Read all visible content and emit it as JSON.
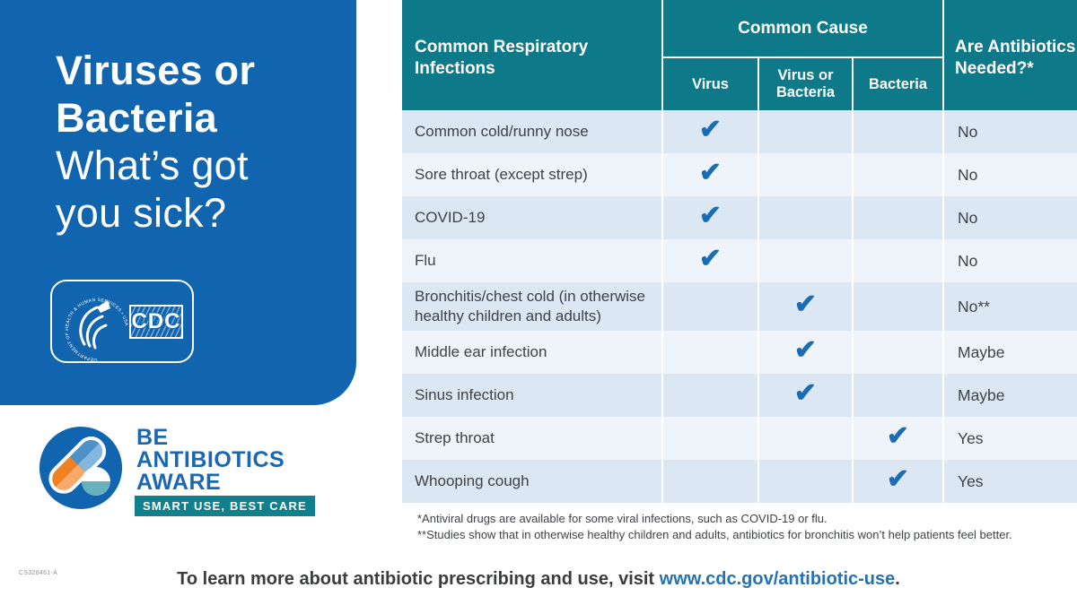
{
  "left_panel": {
    "title": {
      "bold_line1": "Viruses or",
      "bold_line2": "Bacteria",
      "light_line1": "What’s got",
      "light_line2": "you sick?"
    },
    "hhs_cdc": {
      "seal_text": "DEPARTMENT OF HEALTH & HUMAN SERVICES • USA",
      "cdc_label": "CDC"
    }
  },
  "baa_logo": {
    "line1": "BE",
    "line2": "ANTIBIOTICS",
    "line3": "AWARE",
    "banner": "SMART USE, BEST CARE"
  },
  "table": {
    "header": {
      "col_infections": "Common Respiratory Infections",
      "col_cause": "Common Cause",
      "sub_virus": "Virus",
      "sub_virus_or_bacteria": "Virus or Bacteria",
      "sub_bacteria": "Bacteria",
      "col_antibiotics": "Are Antibiotics Needed?*"
    },
    "rows": [
      {
        "infection": "Common cold/runny nose",
        "cause": "virus",
        "antibiotics": "No"
      },
      {
        "infection": "Sore throat (except strep)",
        "cause": "virus",
        "antibiotics": "No"
      },
      {
        "infection": "COVID-19",
        "cause": "virus",
        "antibiotics": "No"
      },
      {
        "infection": "Flu",
        "cause": "virus",
        "antibiotics": "No"
      },
      {
        "infection": "Bronchitis/chest cold (in otherwise healthy children and adults)",
        "cause": "virus_or_bacteria",
        "antibiotics": "No**"
      },
      {
        "infection": "Middle ear infection",
        "cause": "virus_or_bacteria",
        "antibiotics": "Maybe"
      },
      {
        "infection": "Sinus infection",
        "cause": "virus_or_bacteria",
        "antibiotics": "Maybe"
      },
      {
        "infection": "Strep throat",
        "cause": "bacteria",
        "antibiotics": "Yes"
      },
      {
        "infection": "Whooping cough",
        "cause": "bacteria",
        "antibiotics": "Yes"
      }
    ],
    "footnotes": [
      "*Antiviral drugs are available for some viral infections, such as COVID-19 or flu.",
      "**Studies show that in otherwise healthy children and adults, antibiotics for bronchitis won’t help patients feel better."
    ]
  },
  "footer": {
    "prefix": "To learn more about antibiotic prescribing and use, visit ",
    "link": "www.cdc.gov/antibiotic-use",
    "suffix": ".",
    "doc_code": "CS328461-A"
  },
  "icons": {
    "check": "✔"
  },
  "colors": {
    "panel_blue": "#1165ae",
    "header_teal": "#0e7a89",
    "row_dark": "#dbe7f2",
    "row_light": "#eef4fa",
    "check_blue": "#1b6cb1",
    "text_dark": "#3f4246",
    "link_blue": "#2371b7",
    "baa_blue": "#1b67b0",
    "banner_teal": "#0f808c",
    "orange": "#f08123",
    "orange_light": "#f8a969",
    "pill_blue": "#4e90ca",
    "pill_blue_light": "#85b6de",
    "ball_teal": "#67b1bd",
    "muted_gray": "#8f9194"
  }
}
